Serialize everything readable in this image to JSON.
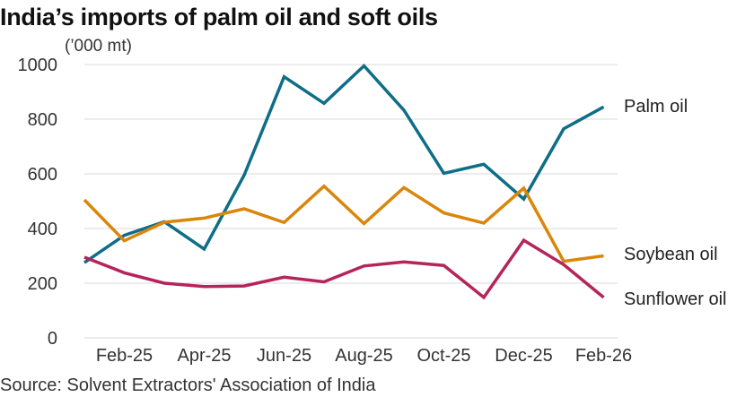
{
  "chart_data": {
    "type": "line",
    "title": "India’s imports of palm oil and soft oils",
    "unit_label": "(’000 mt)",
    "source": "Source: Solvent Extractors' Association of India",
    "ylim": [
      0,
      1000
    ],
    "yticks": [
      0,
      200,
      400,
      600,
      800,
      1000
    ],
    "grid": true,
    "legend": "direct labels at line ends (right)",
    "x": [
      "Jan-25",
      "Feb-25",
      "Mar-25",
      "Apr-25",
      "May-25",
      "Jun-25",
      "Jul-25",
      "Aug-25",
      "Sep-25",
      "Oct-25",
      "Nov-25",
      "Dec-25",
      "Jan-26",
      "Feb-26"
    ],
    "xtick_labels": [
      "Feb-25",
      "Apr-25",
      "Jun-25",
      "Aug-25",
      "Oct-25",
      "Dec-25",
      "Feb-26"
    ],
    "xtick_indices": [
      1,
      3,
      5,
      7,
      9,
      11,
      13
    ],
    "series": [
      {
        "name": "Palm oil",
        "color": "#0e6e87",
        "values": [
          275,
          375,
          425,
          325,
          595,
          955,
          858,
          995,
          833,
          602,
          635,
          508,
          765,
          845
        ]
      },
      {
        "name": "Soybean oil",
        "color": "#d9860b",
        "values": [
          505,
          355,
          423,
          438,
          472,
          422,
          555,
          418,
          550,
          457,
          420,
          548,
          280,
          300
        ]
      },
      {
        "name": "Sunflower oil",
        "color": "#b5245a",
        "values": [
          295,
          238,
          200,
          188,
          190,
          222,
          205,
          263,
          278,
          265,
          148,
          357,
          268,
          148
        ]
      }
    ]
  }
}
